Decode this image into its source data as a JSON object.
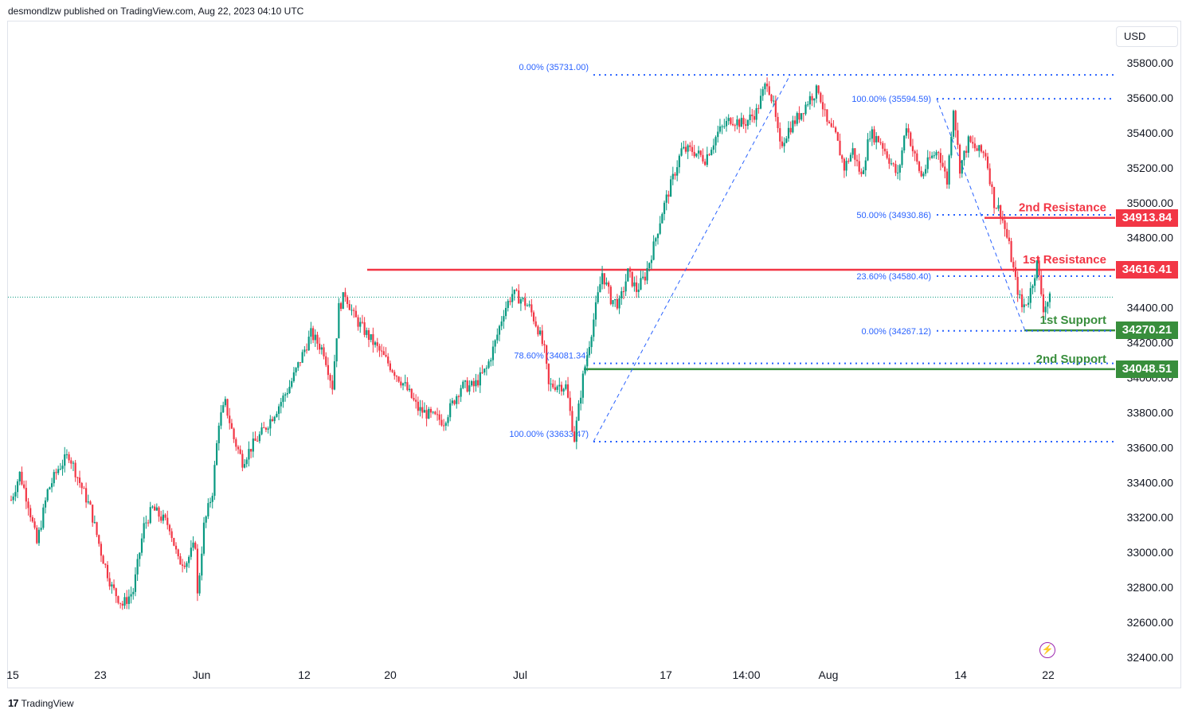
{
  "header": {
    "publisher_line": "desmondlzw published on TradingView.com, Aug 22, 2023 04:10 UTC"
  },
  "footer": {
    "brand": "TradingView",
    "logo_glyph": "17"
  },
  "price_scale": {
    "currency": "USD"
  },
  "colors": {
    "up": "#089981",
    "down": "#f23645",
    "resistance": "#f23645",
    "support": "#388e3c",
    "fib": "#2962ff"
  },
  "icons": {
    "flash": "lightning-icon"
  },
  "chart_data": {
    "type": "candlestick",
    "title": "",
    "ylim": [
      32400,
      35900
    ],
    "y_ticks": [
      "35800.00",
      "35600.00",
      "35400.00",
      "35200.00",
      "35000.00",
      "34800.00",
      "34600.00",
      "34400.00",
      "34200.00",
      "34000.00",
      "33800.00",
      "33600.00",
      "33400.00",
      "33200.00",
      "33000.00",
      "32800.00",
      "32600.00",
      "32400.00"
    ],
    "x_ticks": [
      "15",
      "23",
      "Jun",
      "12",
      "20",
      "Jul",
      "17",
      "14:00",
      "Aug",
      "14",
      "22"
    ],
    "current_price": 34460,
    "levels": [
      {
        "name": "2nd Resistance",
        "value": 34913.84,
        "label": "34913.84",
        "kind": "resistance"
      },
      {
        "name": "1st Resistance",
        "value": 34616.41,
        "label": "34616.41",
        "kind": "resistance"
      },
      {
        "name": "1st Support",
        "value": 34270.21,
        "label": "34270.21",
        "kind": "support"
      },
      {
        "name": "2nd Support",
        "value": 34048.51,
        "label": "34048.51",
        "kind": "support"
      }
    ],
    "fib_upswing": [
      {
        "label": "0.00% (35731.00)",
        "value": 35731.0
      },
      {
        "label": "78.60% (34081.34)",
        "value": 34081.34
      },
      {
        "label": "100.00% (33633.47)",
        "value": 33633.47
      }
    ],
    "fib_downswing": [
      {
        "label": "100.00% (35594.59)",
        "value": 35594.59
      },
      {
        "label": "50.00% (34930.86)",
        "value": 34930.86
      },
      {
        "label": "23.60% (34580.40)",
        "value": 34580.4
      },
      {
        "label": "0.00% (34267.12)",
        "value": 34267.12
      }
    ],
    "price_path": [
      [
        0,
        33300
      ],
      [
        4,
        33450
      ],
      [
        8,
        33280
      ],
      [
        12,
        33050
      ],
      [
        17,
        33350
      ],
      [
        22,
        33480
      ],
      [
        27,
        33560
      ],
      [
        32,
        33400
      ],
      [
        37,
        33250
      ],
      [
        42,
        33000
      ],
      [
        47,
        32800
      ],
      [
        52,
        32700
      ],
      [
        57,
        32780
      ],
      [
        62,
        33150
      ],
      [
        66,
        33250
      ],
      [
        70,
        33200
      ],
      [
        74,
        33150
      ],
      [
        78,
        32950
      ],
      [
        82,
        32950
      ],
      [
        86,
        33050
      ],
      [
        87,
        32750
      ],
      [
        90,
        33150
      ],
      [
        94,
        33350
      ],
      [
        97,
        33750
      ],
      [
        100,
        33850
      ],
      [
        104,
        33650
      ],
      [
        108,
        33520
      ],
      [
        112,
        33600
      ],
      [
        118,
        33700
      ],
      [
        124,
        33820
      ],
      [
        130,
        33950
      ],
      [
        135,
        34100
      ],
      [
        140,
        34250
      ],
      [
        146,
        34150
      ],
      [
        150,
        33950
      ],
      [
        153,
        34400
      ],
      [
        156,
        34480
      ],
      [
        160,
        34350
      ],
      [
        166,
        34250
      ],
      [
        172,
        34150
      ],
      [
        178,
        34050
      ],
      [
        184,
        33950
      ],
      [
        190,
        33820
      ],
      [
        196,
        33780
      ],
      [
        202,
        33750
      ],
      [
        206,
        33850
      ],
      [
        210,
        33950
      ],
      [
        216,
        33950
      ],
      [
        222,
        34050
      ],
      [
        226,
        34200
      ],
      [
        230,
        34380
      ],
      [
        234,
        34480
      ],
      [
        238,
        34450
      ],
      [
        242,
        34400
      ],
      [
        246,
        34280
      ],
      [
        249,
        34150
      ],
      [
        251,
        33950
      ],
      [
        255,
        33960
      ],
      [
        259,
        33950
      ],
      [
        263,
        33650
      ],
      [
        267,
        34000
      ],
      [
        270,
        34200
      ],
      [
        273,
        34400
      ],
      [
        276,
        34600
      ],
      [
        280,
        34450
      ],
      [
        284,
        34420
      ],
      [
        288,
        34600
      ],
      [
        292,
        34500
      ],
      [
        296,
        34580
      ],
      [
        300,
        34750
      ],
      [
        304,
        34950
      ],
      [
        308,
        35100
      ],
      [
        313,
        35300
      ],
      [
        318,
        35300
      ],
      [
        324,
        35250
      ],
      [
        330,
        35400
      ],
      [
        336,
        35480
      ],
      [
        342,
        35450
      ],
      [
        348,
        35520
      ],
      [
        353,
        35700
      ],
      [
        356,
        35550
      ],
      [
        359,
        35320
      ],
      [
        363,
        35420
      ],
      [
        368,
        35500
      ],
      [
        373,
        35600
      ],
      [
        377,
        35650
      ],
      [
        381,
        35450
      ],
      [
        385,
        35380
      ],
      [
        389,
        35200
      ],
      [
        393,
        35300
      ],
      [
        397,
        35150
      ],
      [
        401,
        35400
      ],
      [
        406,
        35350
      ],
      [
        410,
        35250
      ],
      [
        414,
        35150
      ],
      [
        418,
        35450
      ],
      [
        421,
        35300
      ],
      [
        425,
        35150
      ],
      [
        429,
        35250
      ],
      [
        433,
        35300
      ],
      [
        437,
        35120
      ],
      [
        440,
        35550
      ],
      [
        443,
        35200
      ],
      [
        447,
        35350
      ],
      [
        451,
        35300
      ],
      [
        455,
        35280
      ],
      [
        459,
        35000
      ],
      [
        462,
        34950
      ],
      [
        466,
        34750
      ],
      [
        469,
        34550
      ],
      [
        472,
        34400
      ],
      [
        475,
        34450
      ],
      [
        479,
        34650
      ],
      [
        482,
        34400
      ],
      [
        485,
        34450
      ]
    ]
  }
}
